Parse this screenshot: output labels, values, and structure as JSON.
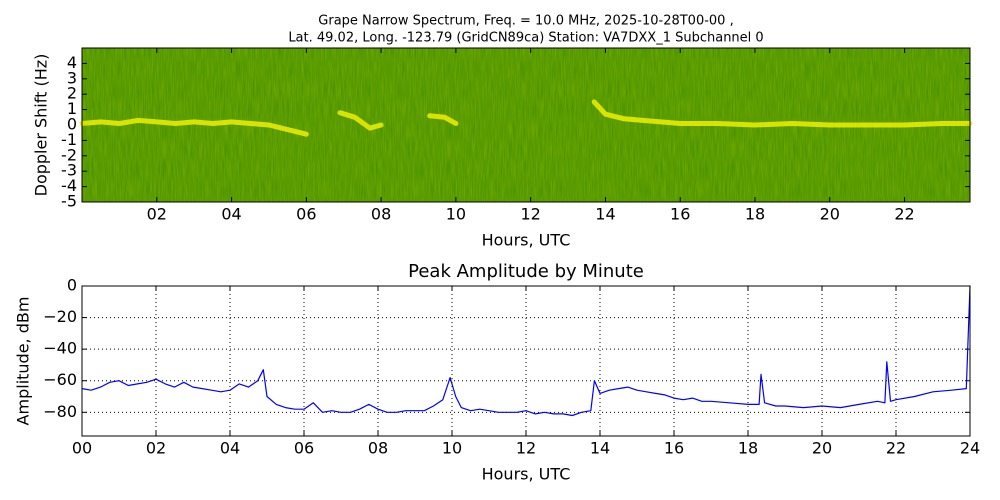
{
  "chart_data": [
    {
      "type": "spectrogram",
      "title": "Grape Narrow Spectrum, Freq. = 10.0 MHz, 2025-10-28T00-00 ,",
      "subtitle": "Lat.  49.02, Long. -123.79 (GridCN89ca) Station: VA7DXX_1 Subchannel 0",
      "xlabel": "Hours, UTC",
      "ylabel": "Doppler Shift (Hz)",
      "xlim": [
        0,
        23.75
      ],
      "ylim": [
        -5,
        5
      ],
      "xticks": [
        {
          "value": 2,
          "label": "02"
        },
        {
          "value": 4,
          "label": "04"
        },
        {
          "value": 6,
          "label": "06"
        },
        {
          "value": 8,
          "label": "08"
        },
        10,
        12,
        14,
        16,
        18,
        20,
        22
      ],
      "yticks": [
        -5,
        -4,
        -3,
        -2,
        -1,
        0,
        1,
        2,
        3,
        4
      ],
      "grid": false,
      "color": "#f0f000",
      "x": [
        0,
        0.5,
        1,
        1.5,
        2,
        2.5,
        3,
        3.5,
        4,
        4.5,
        5,
        5.5,
        6,
        6.5,
        6.9,
        7.3,
        7.7,
        8.0,
        8.5,
        9.3,
        9.7,
        10.0,
        11,
        13.7,
        14.0,
        14.5,
        15,
        16,
        17,
        18,
        19,
        20,
        21,
        22,
        23,
        23.75
      ],
      "values": [
        0.1,
        0.2,
        0.1,
        0.3,
        0.2,
        0.1,
        0.2,
        0.1,
        0.2,
        0.1,
        0.0,
        -0.3,
        -0.6,
        null,
        0.8,
        0.5,
        -0.2,
        0.0,
        null,
        0.6,
        0.5,
        0.1,
        null,
        1.5,
        0.7,
        0.4,
        0.3,
        0.1,
        0.1,
        0.0,
        0.1,
        0.0,
        0.0,
        0.0,
        0.1,
        0.1
      ]
    },
    {
      "type": "line",
      "title": "Peak Amplitude by Minute",
      "xlabel": "Hours, UTC",
      "ylabel": "Amplitude, dBm",
      "xlim": [
        0,
        24
      ],
      "ylim": [
        -95,
        0
      ],
      "xticks": [
        {
          "value": 0,
          "label": "00"
        },
        {
          "value": 2,
          "label": "02"
        },
        {
          "value": 4,
          "label": "04"
        },
        {
          "value": 6,
          "label": "06"
        },
        {
          "value": 8,
          "label": "08"
        },
        10,
        12,
        14,
        16,
        18,
        20,
        22,
        24
      ],
      "yticks": [
        {
          "value": -80,
          "label": "−80"
        },
        {
          "value": -60,
          "label": "−60"
        },
        {
          "value": -40,
          "label": "−40"
        },
        {
          "value": -20,
          "label": "−20"
        },
        0
      ],
      "grid": true,
      "color": "#0000ff",
      "x": [
        0,
        0.25,
        0.5,
        0.75,
        1.0,
        1.25,
        1.5,
        1.75,
        2.0,
        2.25,
        2.5,
        2.75,
        3.0,
        3.25,
        3.5,
        3.75,
        4.0,
        4.25,
        4.5,
        4.75,
        4.9,
        5.0,
        5.25,
        5.5,
        5.75,
        6.0,
        6.25,
        6.5,
        6.75,
        7.0,
        7.25,
        7.5,
        7.75,
        8.0,
        8.25,
        8.5,
        8.75,
        9.0,
        9.25,
        9.5,
        9.75,
        9.95,
        10.1,
        10.25,
        10.5,
        10.75,
        11.0,
        11.25,
        11.5,
        11.75,
        12.0,
        12.25,
        12.5,
        12.75,
        13.0,
        13.25,
        13.5,
        13.75,
        13.85,
        14.0,
        14.25,
        14.5,
        14.75,
        15.0,
        15.25,
        15.5,
        15.75,
        16.0,
        16.25,
        16.5,
        16.75,
        17.0,
        17.5,
        18.0,
        18.3,
        18.35,
        18.45,
        18.75,
        19.0,
        19.5,
        20.0,
        20.5,
        21.0,
        21.5,
        21.7,
        21.75,
        21.85,
        22.0,
        22.5,
        23.0,
        23.5,
        23.9,
        24.0
      ],
      "values": [
        -65,
        -66,
        -64,
        -61,
        -60,
        -63,
        -62,
        -61,
        -59,
        -62,
        -64,
        -61,
        -64,
        -65,
        -66,
        -67,
        -66,
        -62,
        -64,
        -60,
        -53,
        -70,
        -75,
        -77,
        -78,
        -78,
        -74,
        -80,
        -79,
        -80,
        -80,
        -78,
        -75,
        -78,
        -80,
        -80,
        -79,
        -79,
        -79,
        -76,
        -72,
        -58,
        -70,
        -77,
        -79,
        -78,
        -79,
        -80,
        -80,
        -80,
        -79,
        -81,
        -80,
        -81,
        -81,
        -82,
        -80,
        -79,
        -60,
        -68,
        -66,
        -65,
        -64,
        -66,
        -67,
        -68,
        -69,
        -71,
        -72,
        -71,
        -73,
        -73,
        -74,
        -75,
        -75,
        -56,
        -74,
        -76,
        -76,
        -77,
        -76,
        -77,
        -75,
        -73,
        -74,
        -48,
        -73,
        -72,
        -70,
        -67,
        -66,
        -65,
        0
      ]
    }
  ]
}
